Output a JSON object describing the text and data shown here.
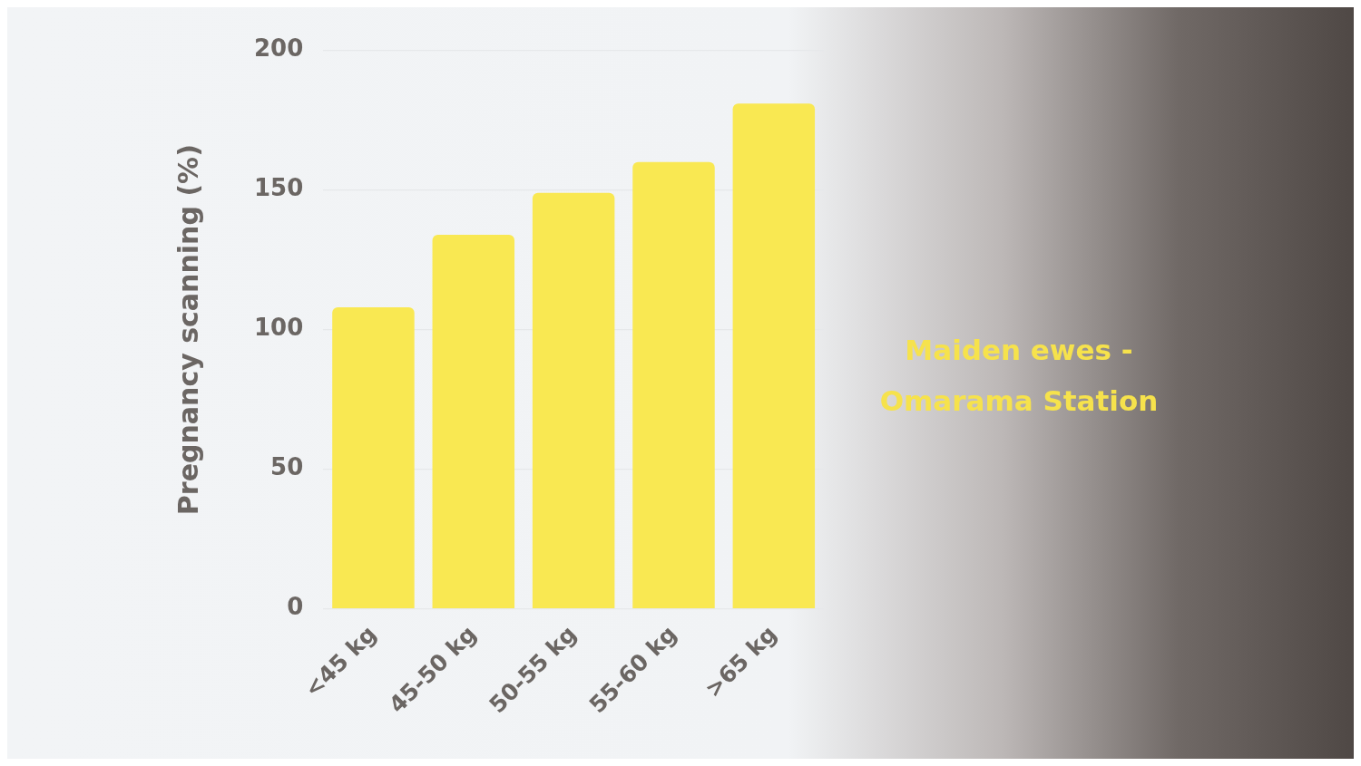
{
  "chart_data": {
    "type": "bar",
    "title": "Maiden ewes - Omarama Station",
    "ylabel": "Pregnancy scanning (%)",
    "categories": [
      "<45 kg",
      "45-50 kg",
      "50-55 kg",
      "55-60 kg",
      ">65 kg"
    ],
    "values": [
      108,
      134,
      149,
      160,
      181
    ],
    "color": "#f9e852",
    "ylim": [
      0,
      200
    ],
    "yticks": [
      0,
      50,
      100,
      150,
      200
    ],
    "grid": "y"
  }
}
